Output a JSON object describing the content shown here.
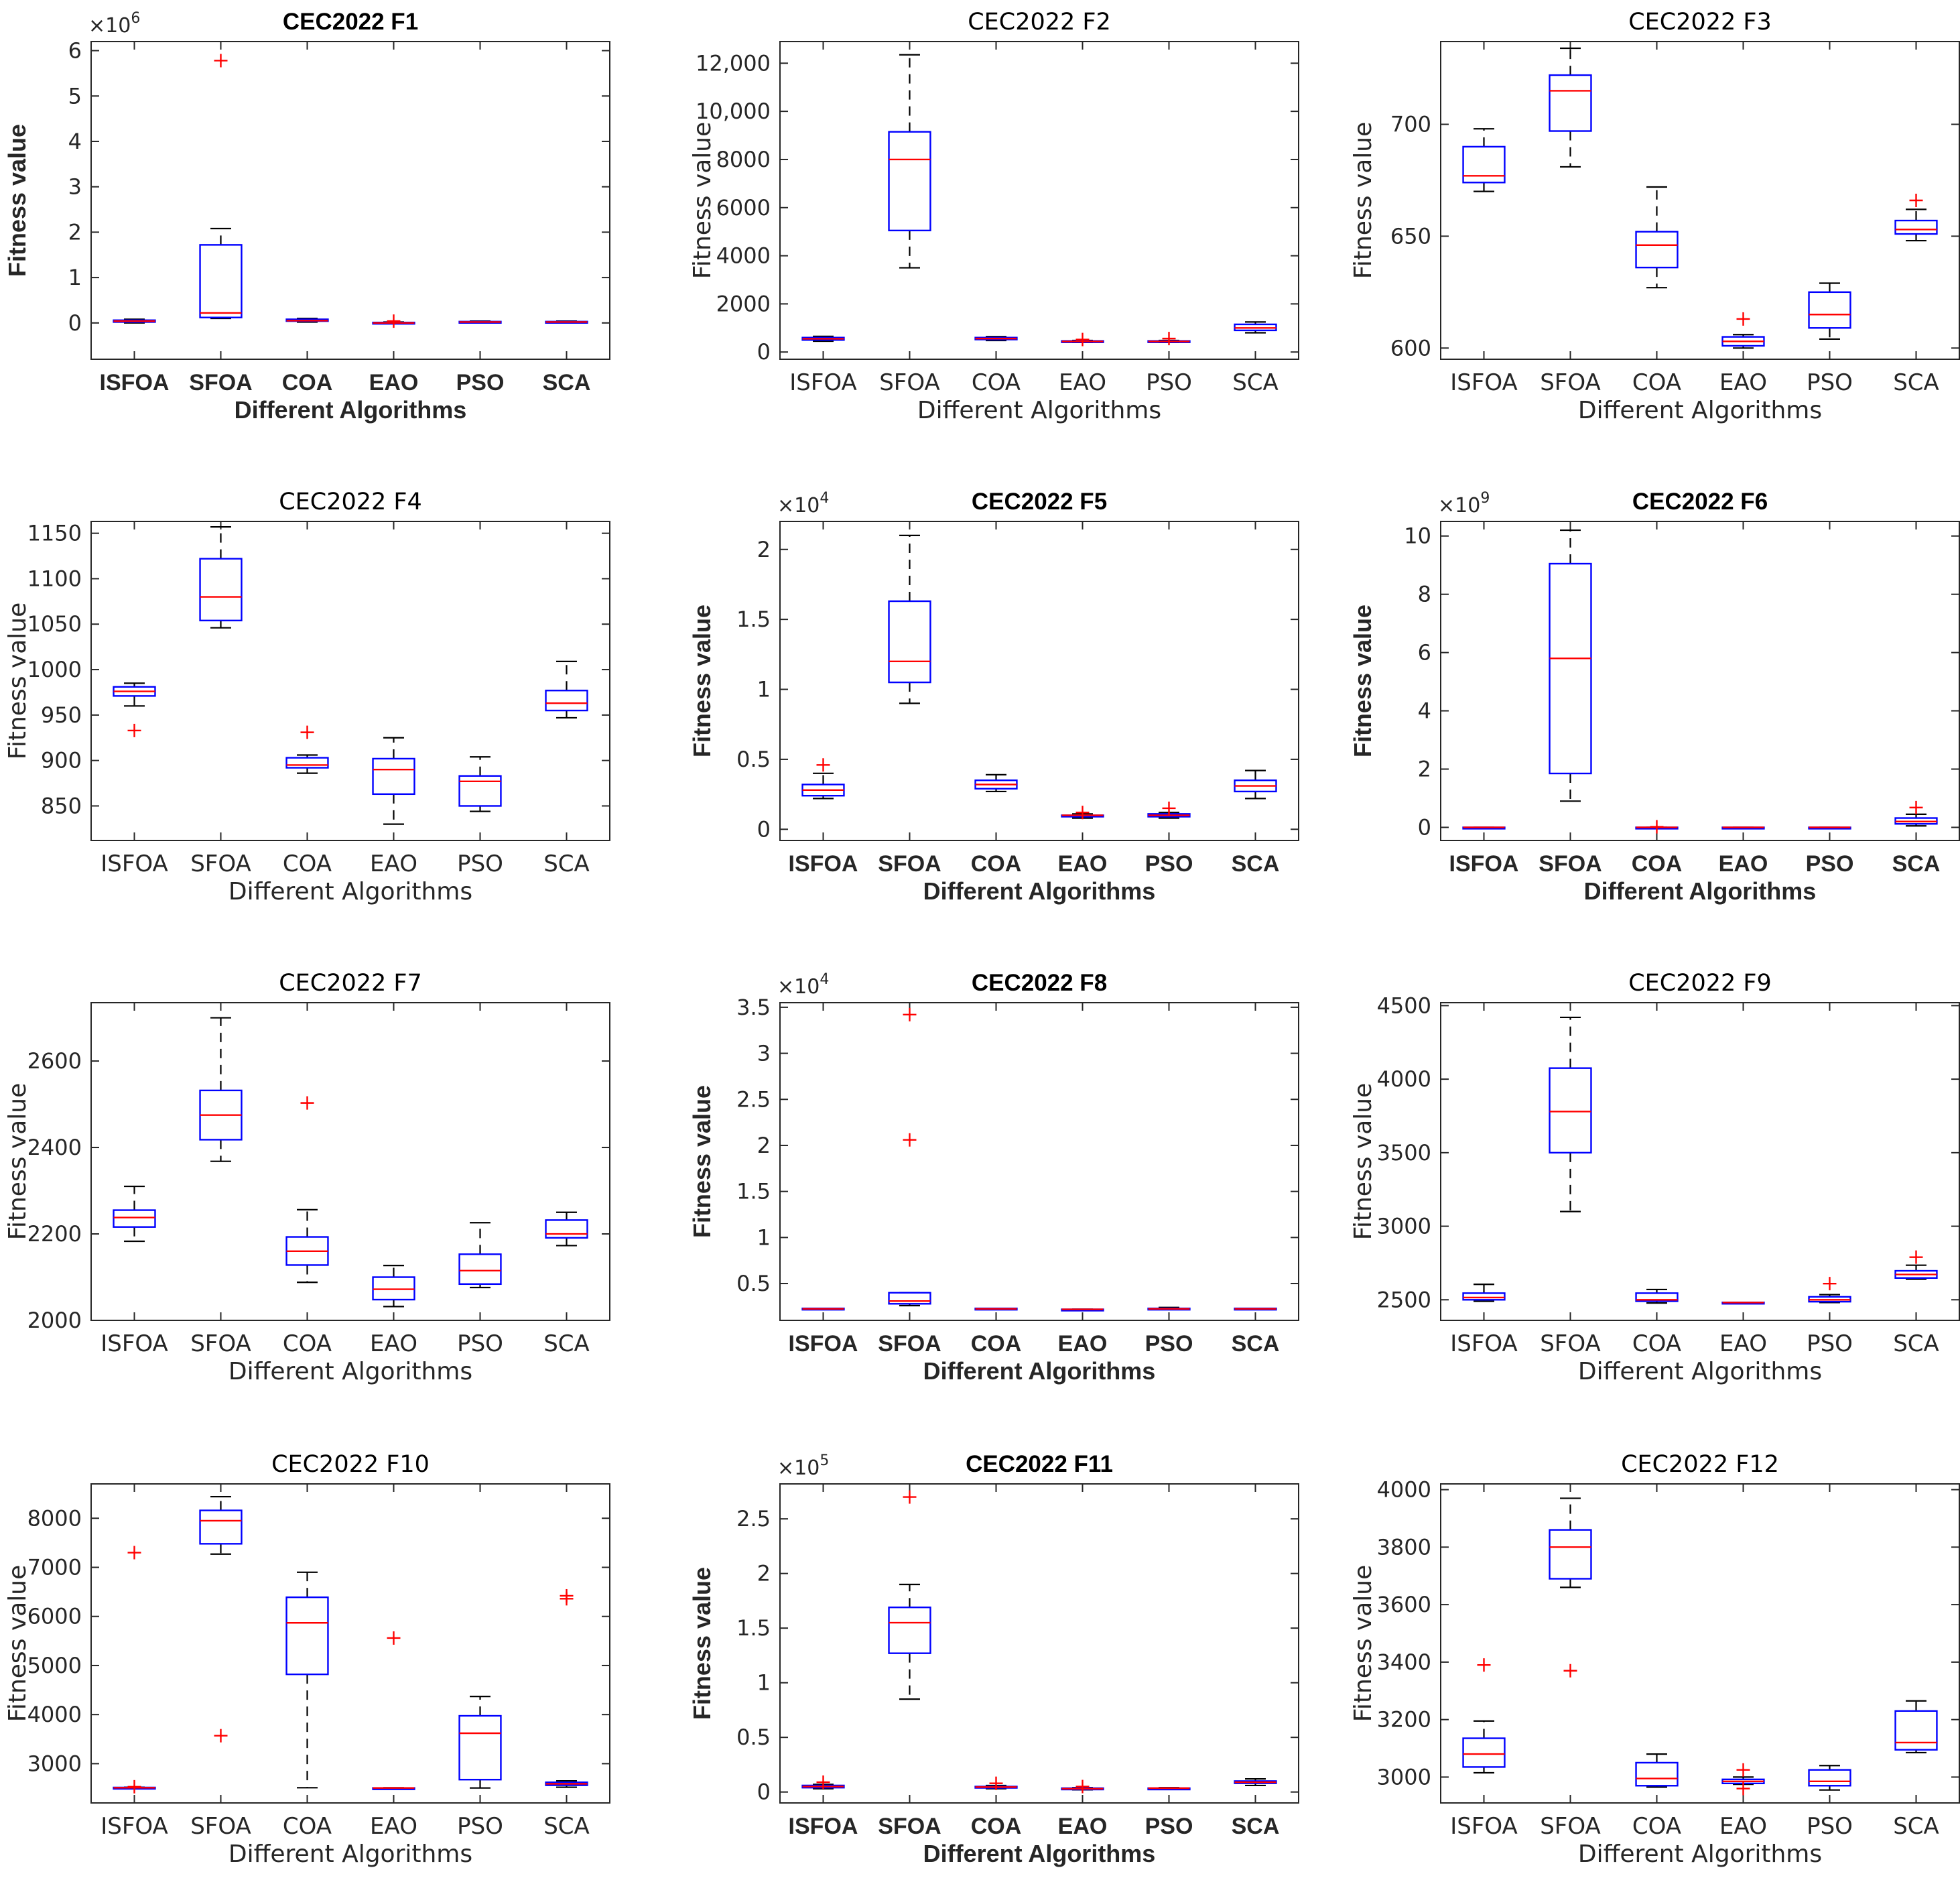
{
  "colors": {
    "box": "#0000ff",
    "median": "#ff0000",
    "whisker": "#000000",
    "outlier": "#ff0000",
    "axes": "#262626"
  },
  "chart_data": [
    {
      "type": "box",
      "title": "CEC2022 F1",
      "xlabel": "Different Algorithms",
      "ylabel": "Fitness value",
      "exponent": "6",
      "bold": true,
      "categories": [
        "ISFOA",
        "SFOA",
        "COA",
        "EAO",
        "PSO",
        "SCA"
      ],
      "ylim": [
        -0.8,
        6.2
      ],
      "ticks": [
        0,
        1,
        2,
        3,
        4,
        5,
        6
      ],
      "tick_labels": [
        "0",
        "1",
        "2",
        "3",
        "4",
        "5",
        "6"
      ],
      "boxes": [
        {
          "min": 0.0,
          "q1": 0.02,
          "median": 0.04,
          "q3": 0.06,
          "max": 0.08,
          "outliers": []
        },
        {
          "min": 0.1,
          "q1": 0.12,
          "median": 0.22,
          "q3": 1.72,
          "max": 2.08,
          "outliers": [
            5.78
          ]
        },
        {
          "min": 0.02,
          "q1": 0.04,
          "median": 0.05,
          "q3": 0.08,
          "max": 0.1,
          "outliers": []
        },
        {
          "min": -0.01,
          "q1": 0.0,
          "median": 0.0,
          "q3": 0.01,
          "max": 0.02,
          "outliers": [
            0.04
          ]
        },
        {
          "min": 0.0,
          "q1": 0.01,
          "median": 0.02,
          "q3": 0.03,
          "max": 0.04,
          "outliers": []
        },
        {
          "min": 0.0,
          "q1": 0.01,
          "median": 0.02,
          "q3": 0.03,
          "max": 0.04,
          "outliers": []
        }
      ]
    },
    {
      "type": "box",
      "title": "CEC2022 F2",
      "xlabel": "Different Algorithms",
      "ylabel": "Fitness value",
      "exponent": "",
      "bold": false,
      "categories": [
        "ISFOA",
        "SFOA",
        "COA",
        "EAO",
        "PSO",
        "SCA"
      ],
      "ylim": [
        -300,
        12900
      ],
      "ticks": [
        0,
        2000,
        4000,
        6000,
        8000,
        10000,
        12000
      ],
      "tick_labels": [
        "0",
        "2000",
        "4000",
        "6000",
        "8000",
        "10,000",
        "12,000"
      ],
      "boxes": [
        {
          "min": 450,
          "q1": 500,
          "median": 550,
          "q3": 600,
          "max": 650,
          "outliers": []
        },
        {
          "min": 3500,
          "q1": 5050,
          "median": 8000,
          "q3": 9150,
          "max": 12350,
          "outliers": []
        },
        {
          "min": 480,
          "q1": 520,
          "median": 560,
          "q3": 600,
          "max": 640,
          "outliers": []
        },
        {
          "min": 400,
          "q1": 420,
          "median": 440,
          "q3": 460,
          "max": 480,
          "outliers": [
            520
          ]
        },
        {
          "min": 400,
          "q1": 420,
          "median": 440,
          "q3": 460,
          "max": 480,
          "outliers": [
            560
          ]
        },
        {
          "min": 800,
          "q1": 900,
          "median": 1000,
          "q3": 1150,
          "max": 1250,
          "outliers": []
        }
      ]
    },
    {
      "type": "box",
      "title": "CEC2022 F3",
      "xlabel": "Different Algorithms",
      "ylabel": "Fitness value",
      "exponent": "",
      "bold": false,
      "categories": [
        "ISFOA",
        "SFOA",
        "COA",
        "EAO",
        "PSO",
        "SCA"
      ],
      "ylim": [
        595,
        737
      ],
      "ticks": [
        600,
        650,
        700
      ],
      "tick_labels": [
        "600",
        "650",
        "700"
      ],
      "boxes": [
        {
          "min": 670,
          "q1": 674,
          "median": 677,
          "q3": 690,
          "max": 698,
          "outliers": []
        },
        {
          "min": 681,
          "q1": 697,
          "median": 715,
          "q3": 722,
          "max": 734,
          "outliers": []
        },
        {
          "min": 627,
          "q1": 636,
          "median": 646,
          "q3": 652,
          "max": 672,
          "outliers": []
        },
        {
          "min": 600,
          "q1": 601,
          "median": 603,
          "q3": 605,
          "max": 606,
          "outliers": [
            613
          ]
        },
        {
          "min": 604,
          "q1": 609,
          "median": 615,
          "q3": 625,
          "max": 629,
          "outliers": []
        },
        {
          "min": 648,
          "q1": 651,
          "median": 653,
          "q3": 657,
          "max": 662,
          "outliers": [
            666
          ]
        }
      ]
    },
    {
      "type": "box",
      "title": "CEC2022 F4",
      "xlabel": "Different Algorithms",
      "ylabel": "Fitness value",
      "exponent": "",
      "bold": false,
      "categories": [
        "ISFOA",
        "SFOA",
        "COA",
        "EAO",
        "PSO",
        "SCA"
      ],
      "ylim": [
        812,
        1163
      ],
      "ticks": [
        850,
        900,
        950,
        1000,
        1050,
        1100,
        1150
      ],
      "tick_labels": [
        "850",
        "900",
        "950",
        "1000",
        "1050",
        "1100",
        "1150"
      ],
      "boxes": [
        {
          "min": 960,
          "q1": 971,
          "median": 976,
          "q3": 981,
          "max": 985,
          "outliers": [
            933
          ]
        },
        {
          "min": 1046,
          "q1": 1054,
          "median": 1080,
          "q3": 1122,
          "max": 1157,
          "outliers": []
        },
        {
          "min": 886,
          "q1": 892,
          "median": 895,
          "q3": 903,
          "max": 906,
          "outliers": [
            931
          ]
        },
        {
          "min": 830,
          "q1": 863,
          "median": 890,
          "q3": 902,
          "max": 925,
          "outliers": []
        },
        {
          "min": 844,
          "q1": 850,
          "median": 877,
          "q3": 883,
          "max": 904,
          "outliers": []
        },
        {
          "min": 947,
          "q1": 955,
          "median": 963,
          "q3": 977,
          "max": 1009,
          "outliers": []
        }
      ]
    },
    {
      "type": "box",
      "title": "CEC2022 F5",
      "xlabel": "Different Algorithms",
      "ylabel": "Fitness value",
      "exponent": "4",
      "bold": true,
      "categories": [
        "ISFOA",
        "SFOA",
        "COA",
        "EAO",
        "PSO",
        "SCA"
      ],
      "ylim": [
        -0.08,
        2.2
      ],
      "ticks": [
        0,
        0.5,
        1,
        1.5,
        2
      ],
      "tick_labels": [
        "0",
        "0.5",
        "1",
        "1.5",
        "2"
      ],
      "boxes": [
        {
          "min": 0.22,
          "q1": 0.24,
          "median": 0.28,
          "q3": 0.32,
          "max": 0.4,
          "outliers": [
            0.46
          ]
        },
        {
          "min": 0.9,
          "q1": 1.05,
          "median": 1.2,
          "q3": 1.63,
          "max": 2.1,
          "outliers": []
        },
        {
          "min": 0.27,
          "q1": 0.29,
          "median": 0.32,
          "q3": 0.35,
          "max": 0.39,
          "outliers": []
        },
        {
          "min": 0.08,
          "q1": 0.09,
          "median": 0.1,
          "q3": 0.1,
          "max": 0.11,
          "outliers": [
            0.12
          ]
        },
        {
          "min": 0.08,
          "q1": 0.09,
          "median": 0.1,
          "q3": 0.11,
          "max": 0.12,
          "outliers": [
            0.15
          ]
        },
        {
          "min": 0.22,
          "q1": 0.27,
          "median": 0.31,
          "q3": 0.35,
          "max": 0.42,
          "outliers": []
        }
      ]
    },
    {
      "type": "box",
      "title": "CEC2022 F6",
      "xlabel": "Different Algorithms",
      "ylabel": "Fitness value",
      "exponent": "9",
      "bold": true,
      "categories": [
        "ISFOA",
        "SFOA",
        "COA",
        "EAO",
        "PSO",
        "SCA"
      ],
      "ylim": [
        -0.45,
        10.5
      ],
      "ticks": [
        0,
        2,
        4,
        6,
        8,
        10
      ],
      "tick_labels": [
        "0",
        "2",
        "4",
        "6",
        "8",
        "10"
      ],
      "boxes": [
        {
          "min": 0.0,
          "q1": 0.0,
          "median": 0.0,
          "q3": 0.0,
          "max": 0.0,
          "outliers": []
        },
        {
          "min": 0.9,
          "q1": 1.85,
          "median": 5.8,
          "q3": 9.05,
          "max": 10.2,
          "outliers": []
        },
        {
          "min": 0.0,
          "q1": 0.0,
          "median": 0.0,
          "q3": 0.0,
          "max": 0.0,
          "outliers": [
            0.02
          ]
        },
        {
          "min": 0.0,
          "q1": 0.0,
          "median": 0.0,
          "q3": 0.0,
          "max": 0.0,
          "outliers": []
        },
        {
          "min": 0.0,
          "q1": 0.0,
          "median": 0.0,
          "q3": 0.0,
          "max": 0.0,
          "outliers": []
        },
        {
          "min": 0.05,
          "q1": 0.12,
          "median": 0.2,
          "q3": 0.32,
          "max": 0.45,
          "outliers": [
            0.68
          ]
        }
      ]
    },
    {
      "type": "box",
      "title": "CEC2022 F7",
      "xlabel": "Different Algorithms",
      "ylabel": "Fitness value",
      "exponent": "",
      "bold": false,
      "categories": [
        "ISFOA",
        "SFOA",
        "COA",
        "EAO",
        "PSO",
        "SCA"
      ],
      "ylim": [
        2000,
        2735
      ],
      "ticks": [
        2000,
        2200,
        2400,
        2600
      ],
      "tick_labels": [
        "2000",
        "2200",
        "2400",
        "2600"
      ],
      "boxes": [
        {
          "min": 2183,
          "q1": 2216,
          "median": 2238,
          "q3": 2255,
          "max": 2310,
          "outliers": []
        },
        {
          "min": 2368,
          "q1": 2418,
          "median": 2475,
          "q3": 2532,
          "max": 2700,
          "outliers": []
        },
        {
          "min": 2088,
          "q1": 2128,
          "median": 2160,
          "q3": 2193,
          "max": 2256,
          "outliers": [
            2503
          ]
        },
        {
          "min": 2032,
          "q1": 2048,
          "median": 2072,
          "q3": 2100,
          "max": 2127,
          "outliers": []
        },
        {
          "min": 2076,
          "q1": 2084,
          "median": 2115,
          "q3": 2153,
          "max": 2226,
          "outliers": []
        },
        {
          "min": 2173,
          "q1": 2191,
          "median": 2200,
          "q3": 2232,
          "max": 2250,
          "outliers": []
        }
      ]
    },
    {
      "type": "box",
      "title": "CEC2022 F8",
      "xlabel": "Different Algorithms",
      "ylabel": "Fitness value",
      "exponent": "4",
      "bold": true,
      "categories": [
        "ISFOA",
        "SFOA",
        "COA",
        "EAO",
        "PSO",
        "SCA"
      ],
      "ylim": [
        0.1,
        3.55
      ],
      "ticks": [
        0.5,
        1,
        1.5,
        2,
        2.5,
        3,
        3.5
      ],
      "tick_labels": [
        "0.5",
        "1",
        "1.5",
        "2",
        "2.5",
        "3",
        "3.5"
      ],
      "boxes": [
        {
          "min": 0.22,
          "q1": 0.22,
          "median": 0.225,
          "q3": 0.23,
          "max": 0.23,
          "outliers": []
        },
        {
          "min": 0.26,
          "q1": 0.28,
          "median": 0.31,
          "q3": 0.4,
          "max": 0.4,
          "outliers": [
            2.06,
            3.42
          ]
        },
        {
          "min": 0.22,
          "q1": 0.22,
          "median": 0.225,
          "q3": 0.23,
          "max": 0.23,
          "outliers": []
        },
        {
          "min": 0.22,
          "q1": 0.22,
          "median": 0.22,
          "q3": 0.22,
          "max": 0.22,
          "outliers": []
        },
        {
          "min": 0.22,
          "q1": 0.22,
          "median": 0.225,
          "q3": 0.23,
          "max": 0.24,
          "outliers": []
        },
        {
          "min": 0.22,
          "q1": 0.22,
          "median": 0.225,
          "q3": 0.23,
          "max": 0.23,
          "outliers": []
        }
      ]
    },
    {
      "type": "box",
      "title": "CEC2022 F9",
      "xlabel": "Different Algorithms",
      "ylabel": "Fitness value",
      "exponent": "",
      "bold": false,
      "categories": [
        "ISFOA",
        "SFOA",
        "COA",
        "EAO",
        "PSO",
        "SCA"
      ],
      "ylim": [
        2360,
        4520
      ],
      "ticks": [
        2500,
        3000,
        3500,
        4000,
        4500
      ],
      "tick_labels": [
        "2500",
        "3000",
        "3500",
        "4000",
        "4500"
      ],
      "boxes": [
        {
          "min": 2490,
          "q1": 2500,
          "median": 2515,
          "q3": 2545,
          "max": 2605,
          "outliers": []
        },
        {
          "min": 3100,
          "q1": 3500,
          "median": 3780,
          "q3": 4075,
          "max": 4420,
          "outliers": []
        },
        {
          "min": 2478,
          "q1": 2490,
          "median": 2500,
          "q3": 2545,
          "max": 2570,
          "outliers": []
        },
        {
          "min": 2480,
          "q1": 2481,
          "median": 2481,
          "q3": 2482,
          "max": 2482,
          "outliers": []
        },
        {
          "min": 2481,
          "q1": 2487,
          "median": 2500,
          "q3": 2520,
          "max": 2535,
          "outliers": [
            2610
          ]
        },
        {
          "min": 2640,
          "q1": 2648,
          "median": 2672,
          "q3": 2697,
          "max": 2735,
          "outliers": [
            2790
          ]
        }
      ]
    },
    {
      "type": "box",
      "title": "CEC2022 F10",
      "xlabel": "Different Algorithms",
      "ylabel": "Fitness value",
      "exponent": "",
      "bold": false,
      "categories": [
        "ISFOA",
        "SFOA",
        "COA",
        "EAO",
        "PSO",
        "SCA"
      ],
      "ylim": [
        2200,
        8700
      ],
      "ticks": [
        3000,
        4000,
        5000,
        6000,
        7000,
        8000
      ],
      "tick_labels": [
        "3000",
        "4000",
        "5000",
        "6000",
        "7000",
        "8000"
      ],
      "boxes": [
        {
          "min": 2502,
          "q1": 2505,
          "median": 2510,
          "q3": 2515,
          "max": 2520,
          "outliers": [
            2530,
            7300
          ]
        },
        {
          "min": 7270,
          "q1": 7480,
          "median": 7950,
          "q3": 8160,
          "max": 8440,
          "outliers": [
            3570
          ]
        },
        {
          "min": 2510,
          "q1": 4820,
          "median": 5870,
          "q3": 6390,
          "max": 6900,
          "outliers": []
        },
        {
          "min": 2500,
          "q1": 2500,
          "median": 2505,
          "q3": 2505,
          "max": 2510,
          "outliers": [
            5560
          ]
        },
        {
          "min": 2505,
          "q1": 2675,
          "median": 3620,
          "q3": 3975,
          "max": 4370,
          "outliers": []
        },
        {
          "min": 2520,
          "q1": 2560,
          "median": 2590,
          "q3": 2620,
          "max": 2650,
          "outliers": [
            6360,
            6420
          ]
        }
      ]
    },
    {
      "type": "box",
      "title": "CEC2022 F11",
      "xlabel": "Different Algorithms",
      "ylabel": "Fitness value",
      "exponent": "5",
      "bold": true,
      "categories": [
        "ISFOA",
        "SFOA",
        "COA",
        "EAO",
        "PSO",
        "SCA"
      ],
      "ylim": [
        -0.1,
        2.82
      ],
      "ticks": [
        0,
        0.5,
        1,
        1.5,
        2,
        2.5
      ],
      "tick_labels": [
        "0",
        "0.5",
        "1",
        "1.5",
        "2",
        "2.5"
      ],
      "boxes": [
        {
          "min": 0.03,
          "q1": 0.04,
          "median": 0.05,
          "q3": 0.06,
          "max": 0.07,
          "outliers": [
            0.09
          ]
        },
        {
          "min": 0.85,
          "q1": 1.27,
          "median": 1.55,
          "q3": 1.69,
          "max": 1.9,
          "outliers": [
            2.7
          ]
        },
        {
          "min": 0.03,
          "q1": 0.04,
          "median": 0.045,
          "q3": 0.05,
          "max": 0.06,
          "outliers": [
            0.08
          ]
        },
        {
          "min": 0.02,
          "q1": 0.025,
          "median": 0.03,
          "q3": 0.035,
          "max": 0.04,
          "outliers": [
            0.05
          ]
        },
        {
          "min": 0.03,
          "q1": 0.03,
          "median": 0.035,
          "q3": 0.035,
          "max": 0.04,
          "outliers": []
        },
        {
          "min": 0.06,
          "q1": 0.08,
          "median": 0.09,
          "q3": 0.1,
          "max": 0.12,
          "outliers": []
        }
      ]
    },
    {
      "type": "box",
      "title": "CEC2022 F12",
      "xlabel": "Different Algorithms",
      "ylabel": "Fitness value",
      "exponent": "",
      "bold": false,
      "categories": [
        "ISFOA",
        "SFOA",
        "COA",
        "EAO",
        "PSO",
        "SCA"
      ],
      "ylim": [
        2910,
        4020
      ],
      "ticks": [
        3000,
        3200,
        3400,
        3600,
        3800,
        4000
      ],
      "tick_labels": [
        "3000",
        "3200",
        "3400",
        "3600",
        "3800",
        "4000"
      ],
      "boxes": [
        {
          "min": 3015,
          "q1": 3035,
          "median": 3080,
          "q3": 3135,
          "max": 3195,
          "outliers": [
            3390
          ]
        },
        {
          "min": 3660,
          "q1": 3690,
          "median": 3800,
          "q3": 3860,
          "max": 3970,
          "outliers": [
            3370
          ]
        },
        {
          "min": 2965,
          "q1": 2970,
          "median": 2995,
          "q3": 3050,
          "max": 3080,
          "outliers": []
        },
        {
          "min": 2975,
          "q1": 2978,
          "median": 2985,
          "q3": 2992,
          "max": 3000,
          "outliers": [
            2960,
            3025
          ]
        },
        {
          "min": 2955,
          "q1": 2970,
          "median": 2985,
          "q3": 3025,
          "max": 3040,
          "outliers": []
        },
        {
          "min": 3085,
          "q1": 3095,
          "median": 3120,
          "q3": 3230,
          "max": 3265,
          "outliers": []
        }
      ]
    }
  ]
}
